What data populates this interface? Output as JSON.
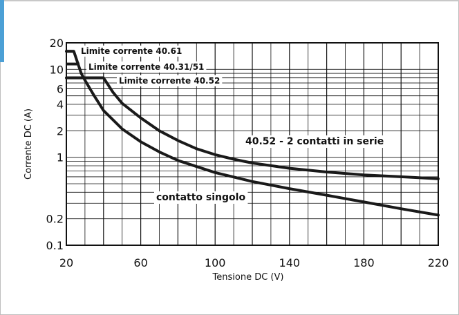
{
  "chart_data": {
    "type": "line",
    "title": "",
    "xlabel": "Tensione DC (V)",
    "ylabel": "Corrente DC (A)",
    "xlim": [
      20,
      220
    ],
    "ylim": [
      0.1,
      20
    ],
    "y_scale": "log",
    "grid": true,
    "x_ticks": [
      "20",
      "60",
      "100",
      "140",
      "180",
      "220"
    ],
    "y_ticks": [
      {
        "value": 20,
        "label": "20"
      },
      {
        "value": 10,
        "label": "10"
      },
      {
        "value": 6,
        "label": "6"
      },
      {
        "value": 4,
        "label": "4"
      },
      {
        "value": 2,
        "label": "2"
      },
      {
        "value": 1,
        "label": "1"
      },
      {
        "value": 0.2,
        "label": "0.2"
      },
      {
        "value": 0.1,
        "label": "0.1"
      }
    ],
    "series": [
      {
        "label": "40.52 - 2 contatti in serie",
        "x": [
          20,
          40,
          45,
          50,
          60,
          70,
          80,
          90,
          100,
          110,
          120,
          140,
          160,
          180,
          200,
          220
        ],
        "y": [
          8,
          8,
          5.5,
          4.1,
          2.8,
          2.0,
          1.55,
          1.25,
          1.07,
          0.95,
          0.86,
          0.75,
          0.68,
          0.63,
          0.6,
          0.57
        ]
      },
      {
        "label": "contatto singolo",
        "x": [
          20,
          24,
          26,
          28,
          30,
          35,
          40,
          50,
          60,
          70,
          80,
          100,
          120,
          140,
          160,
          180,
          200,
          220
        ],
        "y": [
          16,
          16,
          12,
          9,
          7.5,
          5,
          3.4,
          2.1,
          1.5,
          1.15,
          0.92,
          0.67,
          0.53,
          0.44,
          0.37,
          0.31,
          0.26,
          0.22
        ]
      }
    ],
    "annotations": [
      "Limite corrente 40.61",
      "Limite corrente 40.31/51",
      "Limite corrente 40.52"
    ],
    "limits": [
      {
        "label": "Limite corrente 40.61",
        "y": 16,
        "x_end": 24
      },
      {
        "label": "Limite corrente 40.31/51",
        "y": 11.5,
        "x_end": 27
      },
      {
        "label": "Limite corrente 40.52",
        "y": 8,
        "x_end": 40
      }
    ]
  }
}
